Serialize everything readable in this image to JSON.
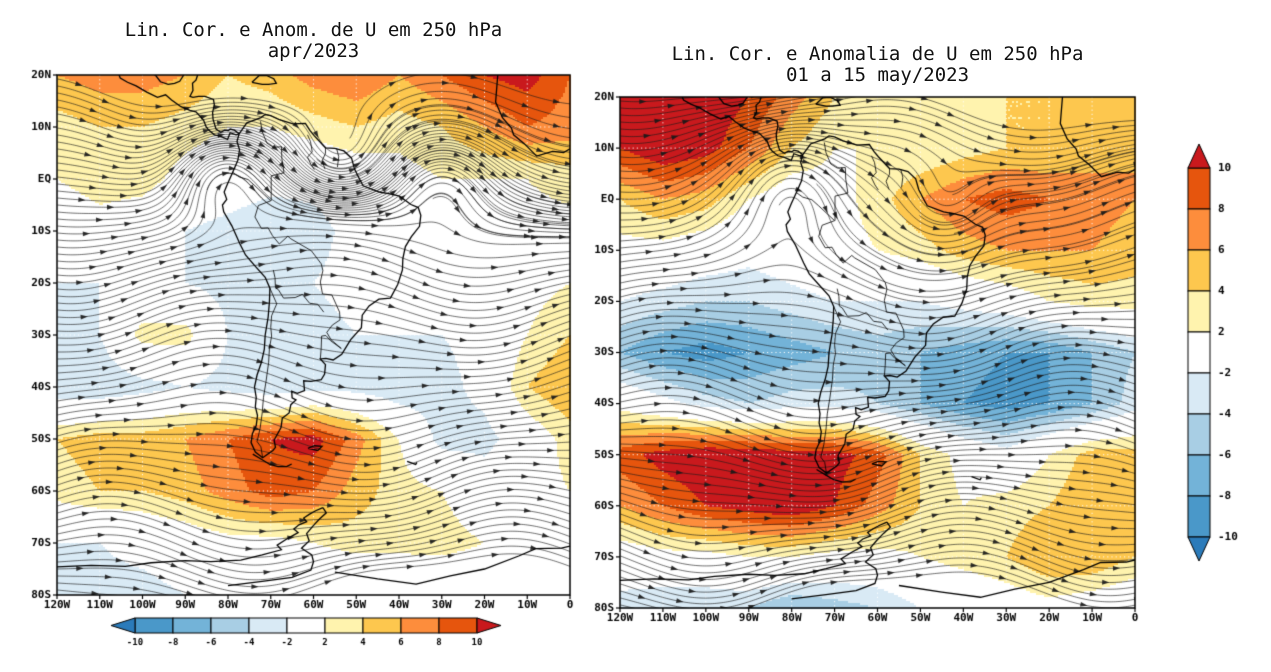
{
  "palette": {
    "levels": [
      -10,
      -8,
      -6,
      -4,
      -2,
      2,
      4,
      6,
      8,
      10
    ],
    "colors": [
      "#2b7bba",
      "#4a98c9",
      "#73b3d8",
      "#a8cee4",
      "#d9eaf5",
      "#ffffff",
      "#fff3ae",
      "#fdc74e",
      "#fd8d3c",
      "#e6550d",
      "#c9191d"
    ]
  },
  "chart_data": [
    {
      "type": "heatmap",
      "panel": "left",
      "title": "Lin. Cor. e Anom. de U em 250 hPa",
      "subtitle": "apr/2023",
      "overlay": "wind streamlines with arrowheads",
      "x_ticks": [
        "120W",
        "110W",
        "100W",
        "90W",
        "80W",
        "70W",
        "60W",
        "50W",
        "40W",
        "30W",
        "20W",
        "10W",
        "0"
      ],
      "y_ticks": [
        "20N",
        "10N",
        "EQ",
        "10S",
        "20S",
        "30S",
        "40S",
        "50S",
        "60S",
        "70S",
        "80S"
      ],
      "lon_range": [
        -120,
        0
      ],
      "lat_range": [
        20,
        -80
      ],
      "grid_lon": [
        -120,
        -110,
        -100,
        -90,
        -80,
        -70,
        -60,
        -50,
        -40,
        -30,
        -20,
        -10,
        0
      ],
      "grid_lat": [
        20,
        10,
        0,
        -10,
        -20,
        -30,
        -40,
        -50,
        -60,
        -70,
        -80
      ],
      "anomaly_grid": [
        [
          6,
          7,
          7,
          6,
          4,
          5,
          7,
          8,
          6,
          8,
          10,
          11,
          8
        ],
        [
          3,
          4,
          4,
          3,
          2,
          2,
          3,
          4,
          3,
          4,
          6,
          8,
          7
        ],
        [
          2,
          3,
          3,
          1,
          0,
          -1,
          -1,
          0,
          1,
          2,
          2,
          2,
          3
        ],
        [
          0,
          1,
          0,
          -2,
          -3,
          -4,
          -3,
          -1,
          0,
          1,
          1,
          1,
          1
        ],
        [
          -2,
          -2,
          -1,
          -2,
          -3,
          -3,
          -2,
          -1,
          -1,
          -1,
          0,
          1,
          2
        ],
        [
          -3,
          -2,
          3,
          3,
          -2,
          -4,
          -3,
          -2,
          -2,
          -2,
          -1,
          2,
          4
        ],
        [
          -4,
          -4,
          -3,
          -2,
          -3,
          -4,
          -3,
          -3,
          -4,
          -3,
          -1,
          4,
          6
        ],
        [
          4,
          5,
          5,
          6,
          8,
          10,
          11,
          7,
          2,
          -3,
          -3,
          0,
          3
        ],
        [
          3,
          4,
          4,
          5,
          7,
          9,
          8,
          5,
          3,
          2,
          0,
          1,
          2
        ],
        [
          -2,
          -2,
          -1,
          0,
          1,
          1,
          2,
          3,
          3,
          3,
          2,
          1,
          0
        ],
        [
          -2,
          -3,
          -3,
          -2,
          -2,
          -1,
          -2,
          -2,
          -2,
          -1,
          -1,
          -1,
          -2
        ]
      ],
      "colorbar_position": "bottom"
    },
    {
      "type": "heatmap",
      "panel": "right",
      "title": "Lin. Cor. e Anomalia de U em 250 hPa",
      "subtitle": "01 a 15 may/2023",
      "overlay": "wind streamlines with arrowheads",
      "x_ticks": [
        "120W",
        "110W",
        "100W",
        "90W",
        "80W",
        "70W",
        "60W",
        "50W",
        "40W",
        "30W",
        "20W",
        "10W",
        "0"
      ],
      "y_ticks": [
        "20N",
        "10N",
        "EQ",
        "10S",
        "20S",
        "30S",
        "40S",
        "50S",
        "60S",
        "70S",
        "80S"
      ],
      "lon_range": [
        -120,
        0
      ],
      "lat_range": [
        20,
        -80
      ],
      "grid_lon": [
        -120,
        -110,
        -100,
        -90,
        -80,
        -70,
        -60,
        -50,
        -40,
        -30,
        -20,
        -10,
        0
      ],
      "grid_lat": [
        20,
        10,
        0,
        -10,
        -20,
        -30,
        -40,
        -50,
        -60,
        -70,
        -80
      ],
      "anomaly_grid": [
        [
          11,
          12,
          12,
          10,
          7,
          4,
          3,
          3,
          3,
          4,
          4,
          5,
          4
        ],
        [
          10,
          12,
          11,
          8,
          4,
          2,
          2,
          2,
          3,
          4,
          4,
          5,
          6
        ],
        [
          4,
          6,
          5,
          2,
          0,
          1,
          3,
          6,
          8,
          9,
          8,
          7,
          6
        ],
        [
          1,
          1,
          0,
          -1,
          0,
          1,
          2,
          3,
          5,
          6,
          6,
          6,
          5
        ],
        [
          -2,
          -3,
          -4,
          -4,
          -3,
          -2,
          -2,
          -2,
          -1,
          0,
          2,
          3,
          3
        ],
        [
          -6,
          -8,
          -9,
          -8,
          -7,
          -6,
          -5,
          -6,
          -7,
          -8,
          -8,
          -6,
          -4
        ],
        [
          1,
          -1,
          -3,
          -4,
          -3,
          -3,
          -4,
          -6,
          -8,
          -9,
          -8,
          -6,
          -3
        ],
        [
          9,
          11,
          12,
          12,
          11,
          11,
          9,
          4,
          1,
          -1,
          2,
          5,
          5
        ],
        [
          6,
          8,
          10,
          11,
          12,
          10,
          7,
          4,
          2,
          3,
          4,
          6,
          5
        ],
        [
          0,
          1,
          1,
          2,
          2,
          1,
          1,
          2,
          3,
          4,
          6,
          6,
          4
        ],
        [
          -3,
          -4,
          -4,
          -4,
          -6,
          -5,
          -4,
          -2,
          -1,
          0,
          1,
          0,
          -1
        ]
      ],
      "colorbar_position": "right"
    }
  ]
}
